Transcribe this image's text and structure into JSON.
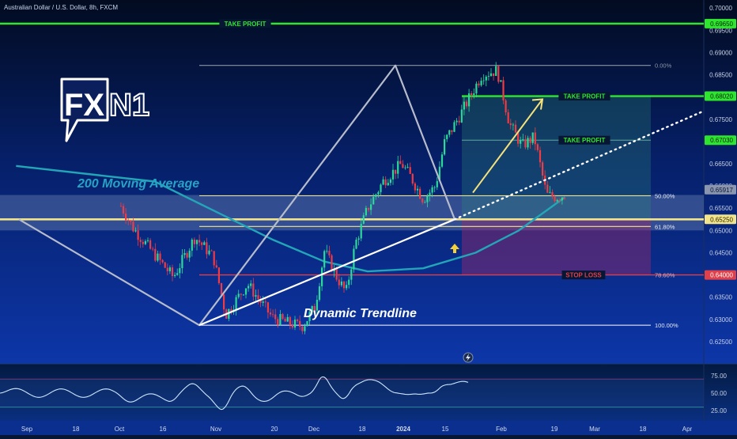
{
  "header": {
    "title": "Australian Dollar / U.S. Dollar, 8h, FXCM"
  },
  "logo": {
    "text_fx": "FX",
    "text_n1": "N1"
  },
  "colors": {
    "background_top": "#020c24",
    "background_bottom": "#0b2c8c",
    "take_profit": "#2fe62f",
    "stop_loss": "#e0404a",
    "fib": "#f2e48a",
    "ma": "#23a6b8",
    "trendline": "#ffffff",
    "bull_candle": "#2bd99a",
    "bear_candle": "#ef3b45",
    "projection": "#f6e27a",
    "rsi": "#cfe6ff"
  },
  "chart_data": {
    "type": "candlestick",
    "symbol": "AUDUSD",
    "timeframe": "8h",
    "y_ticks": [
      0.7,
      0.695,
      0.69,
      0.685,
      0.68,
      0.675,
      0.67,
      0.665,
      0.66,
      0.655,
      0.65,
      0.645,
      0.64,
      0.635,
      0.63,
      0.625
    ],
    "y_tick_labels": [
      "0.70000",
      "0.69500",
      "0.69000",
      "0.68500",
      "0.68000",
      "0.67500",
      "0.67000",
      "0.66500",
      "0.66000",
      "0.65500",
      "0.65000",
      "0.64500",
      "0.64000",
      "0.63500",
      "0.63000",
      "0.62500"
    ],
    "x_ticks": [
      "Sep",
      "18",
      "Oct",
      "16",
      "Nov",
      "20",
      "Dec",
      "18",
      "2024",
      "15",
      "Feb",
      "19",
      "Mar",
      "18",
      "Apr"
    ],
    "ylim": [
      0.6225,
      0.7003
    ],
    "price_path": [
      [
        "Sep 1",
        0.6555
      ],
      [
        "Sep 5",
        0.6505
      ],
      [
        "Sep 12",
        0.6445
      ],
      [
        "Sep 18",
        0.6395
      ],
      [
        "Sep 25",
        0.6485
      ],
      [
        "Oct 1",
        0.644
      ],
      [
        "Oct 5",
        0.631
      ],
      [
        "Oct 12",
        0.638
      ],
      [
        "Oct 20",
        0.6305
      ],
      [
        "Oct 26",
        0.629
      ],
      [
        "Oct 30",
        0.6285
      ],
      [
        "Nov 3",
        0.633
      ],
      [
        "Nov 6",
        0.6455
      ],
      [
        "Nov 10",
        0.6395
      ],
      [
        "Nov 13",
        0.636
      ],
      [
        "Nov 16",
        0.647
      ],
      [
        "Nov 20",
        0.655
      ],
      [
        "Nov 25",
        0.661
      ],
      [
        "Dec 1",
        0.665
      ],
      [
        "Dec 4",
        0.662
      ],
      [
        "Dec 8",
        0.657
      ],
      [
        "Dec 12",
        0.66
      ],
      [
        "Dec 15",
        0.67
      ],
      [
        "Dec 20",
        0.676
      ],
      [
        "Dec 27",
        0.685
      ],
      [
        "Jan 1",
        0.686
      ],
      [
        "Jan 5",
        0.674
      ],
      [
        "Jan 9",
        0.669
      ],
      [
        "Jan 13",
        0.671
      ],
      [
        "Jan 17",
        0.658
      ],
      [
        "Jan 20",
        0.6575
      ],
      [
        "Jan 23",
        0.658
      ]
    ],
    "ma_path": [
      [
        "Aug 28",
        0.6645
      ],
      [
        "Sep 12",
        0.661
      ],
      [
        "Oct 1",
        0.6545
      ],
      [
        "Oct 20",
        0.648
      ],
      [
        "Nov 6",
        0.643
      ],
      [
        "Nov 20",
        0.6408
      ],
      [
        "Dec 8",
        0.6415
      ],
      [
        "Dec 25",
        0.645
      ],
      [
        "Jan 8",
        0.65
      ],
      [
        "Jan 17",
        0.6545
      ],
      [
        "Jan 23",
        0.6575
      ]
    ],
    "current_price": 0.65917,
    "current_price_label": "0.65917",
    "take_profit_levels": [
      {
        "label": "TAKE PROFIT",
        "price": 0.6965,
        "price_label": "0.69650"
      },
      {
        "label": "TAKE PROFIT",
        "price": 0.6802,
        "price_label": "0.68020"
      },
      {
        "label": "TAKE PROFIT",
        "price": 0.6703,
        "price_label": "0.67030"
      }
    ],
    "entry": {
      "price": 0.6525,
      "price_label": "0.65250"
    },
    "stop_loss": {
      "label": "STOP LOSS",
      "price": 0.64,
      "price_label": "0.64000",
      "fib_label": "78.60%"
    },
    "fib_levels": [
      {
        "label": "0.00%",
        "price": 0.6871
      },
      {
        "label": "50.00%",
        "price": 0.6578
      },
      {
        "label": "61.80%",
        "price": 0.6509
      },
      {
        "label": "100.00%",
        "price": 0.6287
      }
    ],
    "annotations": [
      "200 Moving Average",
      "Dynamic Trendline"
    ],
    "rsi": {
      "y_ticks": [
        75,
        50,
        25
      ],
      "y_tick_labels": [
        "75.00",
        "50.00",
        "25.00"
      ],
      "upper": 70,
      "lower": 30
    }
  }
}
